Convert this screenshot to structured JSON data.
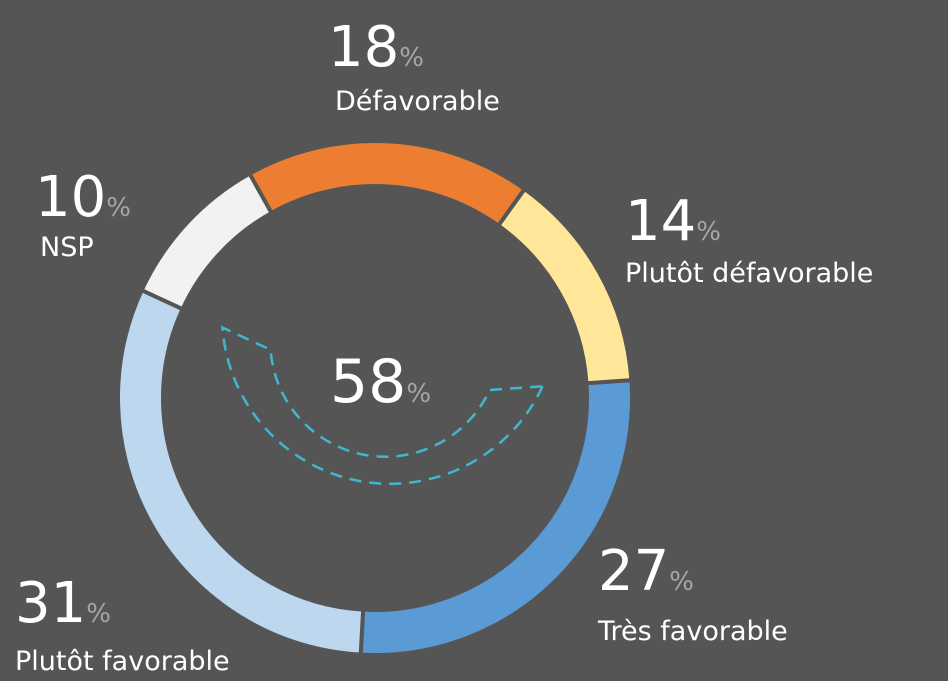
{
  "chart_data": {
    "type": "donut",
    "categories": [
      "Très favorable",
      "Plutôt favorable",
      "NSP",
      "Défavorable",
      "Plutôt défavorable"
    ],
    "values": [
      27,
      31,
      10,
      18,
      14
    ],
    "colors": [
      "#5b9bd5",
      "#bdd7ee",
      "#f2f2f2",
      "#ed7d31",
      "#ffe699"
    ],
    "unit": "%",
    "center_value": 58
  }
}
